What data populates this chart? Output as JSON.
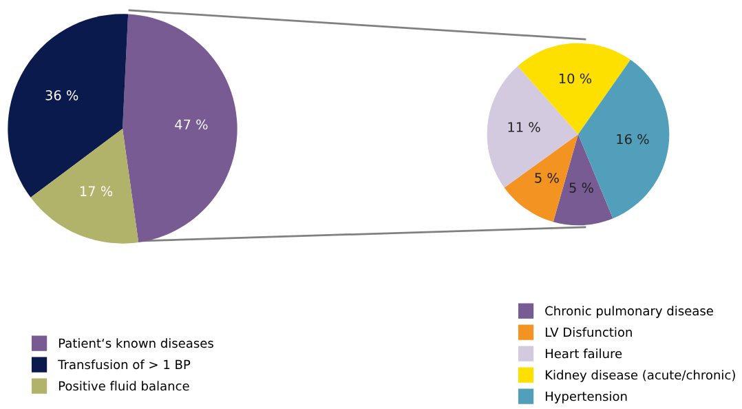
{
  "chart_data": [
    {
      "type": "pie",
      "categories": [
        "Patient‘s known diseases",
        "Transfusion of > 1 BP",
        "Positive fluid balance"
      ],
      "values": [
        47,
        36,
        17
      ],
      "colors": [
        "#775b92",
        "#0b1a4d",
        "#b1b36a"
      ],
      "value_labels": [
        "47 %",
        "36 %",
        "17 %"
      ],
      "legend": "bottom left"
    },
    {
      "type": "pie",
      "categories": [
        "Chronic pulmonary disease",
        "LV Disfunction",
        "Heart failure",
        "Kidney disease (acute/chronic)",
        "Hypertension"
      ],
      "values": [
        5,
        5,
        11,
        10,
        16
      ],
      "colors": [
        "#775b92",
        "#f39322",
        "#d4cadf",
        "#fde000",
        "#529fbb"
      ],
      "value_labels": [
        "5 %",
        "5 %",
        "11 %",
        "10 %",
        "16 %"
      ],
      "legend": "bottom right"
    }
  ]
}
